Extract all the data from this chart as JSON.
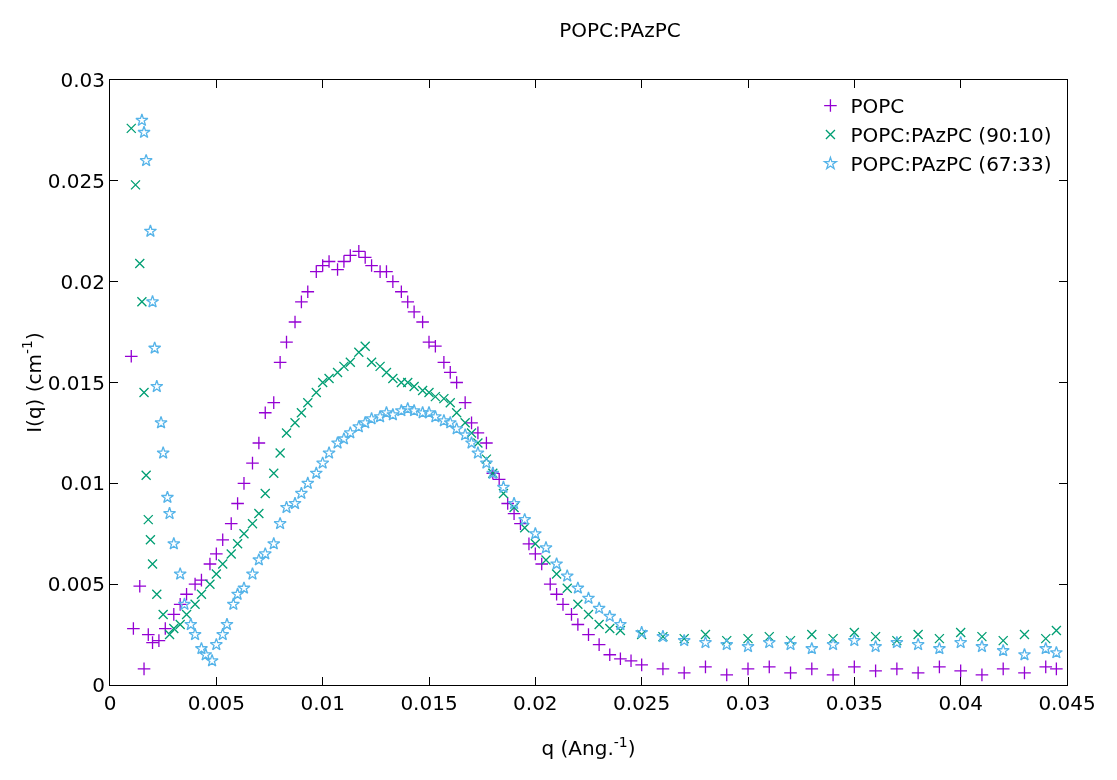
{
  "chart_data": {
    "type": "scatter",
    "title": "POPC:PAzPC",
    "xlabel": "q (Ang.$^{-1}$)",
    "ylabel": "I(q) (cm$^{-1}$)",
    "xlim": [
      0,
      0.045
    ],
    "xticks": [
      0,
      0.005,
      0.01,
      0.015,
      0.02,
      0.025,
      0.03,
      0.035,
      0.04,
      0.045
    ],
    "ylim": [
      0,
      0.03
    ],
    "yticks": [
      0,
      0.005,
      0.01,
      0.015,
      0.02,
      0.025,
      0.03
    ],
    "grid": false,
    "legend": "top right",
    "series": [
      {
        "name": "POPC",
        "color": "#9400d3",
        "marker": "cross",
        "x": [
          0.001,
          0.0011,
          0.0014,
          0.0016,
          0.0018,
          0.002,
          0.0023,
          0.0026,
          0.003,
          0.0033,
          0.0036,
          0.004,
          0.0043,
          0.0047,
          0.005,
          0.0053,
          0.0057,
          0.006,
          0.0063,
          0.0067,
          0.007,
          0.0073,
          0.0077,
          0.008,
          0.0083,
          0.0087,
          0.009,
          0.0093,
          0.0097,
          0.01,
          0.0103,
          0.0107,
          0.011,
          0.0113,
          0.0117,
          0.012,
          0.0123,
          0.0127,
          0.013,
          0.0133,
          0.0137,
          0.014,
          0.0143,
          0.0147,
          0.015,
          0.0153,
          0.0157,
          0.016,
          0.0163,
          0.0167,
          0.017,
          0.0173,
          0.0177,
          0.018,
          0.0183,
          0.0187,
          0.019,
          0.0193,
          0.0197,
          0.02,
          0.0203,
          0.0207,
          0.021,
          0.0213,
          0.0217,
          0.022,
          0.0225,
          0.023,
          0.0235,
          0.024,
          0.0245,
          0.025,
          0.026,
          0.027,
          0.028,
          0.029,
          0.03,
          0.031,
          0.032,
          0.033,
          0.034,
          0.035,
          0.036,
          0.037,
          0.038,
          0.039,
          0.04,
          0.041,
          0.042,
          0.043,
          0.044,
          0.0445
        ],
        "values": [
          0.0163,
          0.0028,
          0.0049,
          0.0008,
          0.0025,
          0.0021,
          0.0022,
          0.0028,
          0.0035,
          0.004,
          0.0045,
          0.005,
          0.0052,
          0.006,
          0.0065,
          0.0072,
          0.008,
          0.009,
          0.01,
          0.011,
          0.012,
          0.0135,
          0.014,
          0.016,
          0.017,
          0.018,
          0.019,
          0.0195,
          0.0205,
          0.0208,
          0.021,
          0.0206,
          0.021,
          0.0213,
          0.0215,
          0.0212,
          0.0208,
          0.0205,
          0.0205,
          0.02,
          0.0195,
          0.019,
          0.0185,
          0.018,
          0.017,
          0.0168,
          0.016,
          0.0155,
          0.015,
          0.014,
          0.013,
          0.0125,
          0.012,
          0.0105,
          0.0102,
          0.009,
          0.0085,
          0.008,
          0.007,
          0.0065,
          0.006,
          0.005,
          0.0045,
          0.004,
          0.0035,
          0.003,
          0.0025,
          0.002,
          0.0015,
          0.0013,
          0.0012,
          0.001,
          0.0008,
          0.0006,
          0.0009,
          0.0005,
          0.0008,
          0.0009,
          0.0006,
          0.0008,
          0.0005,
          0.0009,
          0.0007,
          0.0008,
          0.0006,
          0.0009,
          0.0007,
          0.0005,
          0.0008,
          0.0006,
          0.0009,
          0.0008
        ]
      },
      {
        "name": "POPC:PAzPC (90:10)",
        "color": "#009e73",
        "marker": "x",
        "x": [
          0.001,
          0.0012,
          0.0014,
          0.0015,
          0.0016,
          0.0017,
          0.0018,
          0.0019,
          0.002,
          0.0022,
          0.0025,
          0.0028,
          0.003,
          0.0033,
          0.0036,
          0.004,
          0.0043,
          0.0047,
          0.005,
          0.0053,
          0.0057,
          0.006,
          0.0063,
          0.0067,
          0.007,
          0.0073,
          0.0077,
          0.008,
          0.0083,
          0.0087,
          0.009,
          0.0093,
          0.0097,
          0.01,
          0.0103,
          0.0107,
          0.011,
          0.0113,
          0.0117,
          0.012,
          0.0123,
          0.0127,
          0.013,
          0.0133,
          0.0137,
          0.014,
          0.0143,
          0.0147,
          0.015,
          0.0153,
          0.0157,
          0.016,
          0.0163,
          0.0167,
          0.017,
          0.0173,
          0.0177,
          0.018,
          0.0185,
          0.019,
          0.0195,
          0.02,
          0.0205,
          0.021,
          0.0215,
          0.022,
          0.0225,
          0.023,
          0.0235,
          0.024,
          0.025,
          0.026,
          0.027,
          0.028,
          0.029,
          0.03,
          0.031,
          0.032,
          0.033,
          0.034,
          0.035,
          0.036,
          0.037,
          0.038,
          0.039,
          0.04,
          0.041,
          0.042,
          0.043,
          0.044,
          0.0445
        ],
        "values": [
          0.0276,
          0.0248,
          0.0209,
          0.019,
          0.0145,
          0.0104,
          0.0082,
          0.0072,
          0.006,
          0.0045,
          0.0035,
          0.0025,
          0.0028,
          0.003,
          0.0035,
          0.004,
          0.0045,
          0.005,
          0.0055,
          0.006,
          0.0065,
          0.007,
          0.0075,
          0.008,
          0.0085,
          0.0095,
          0.0105,
          0.0115,
          0.0125,
          0.013,
          0.0135,
          0.014,
          0.0145,
          0.015,
          0.0152,
          0.0155,
          0.0158,
          0.016,
          0.0165,
          0.0168,
          0.016,
          0.0158,
          0.0155,
          0.0152,
          0.015,
          0.015,
          0.0148,
          0.0146,
          0.0145,
          0.0143,
          0.0142,
          0.014,
          0.0135,
          0.013,
          0.0125,
          0.012,
          0.0112,
          0.0105,
          0.0095,
          0.0088,
          0.0078,
          0.007,
          0.0062,
          0.0055,
          0.0048,
          0.004,
          0.0035,
          0.003,
          0.0028,
          0.0027,
          0.0025,
          0.0024,
          0.0023,
          0.0025,
          0.0022,
          0.0023,
          0.0024,
          0.0022,
          0.0025,
          0.0023,
          0.0026,
          0.0024,
          0.0022,
          0.0025,
          0.0023,
          0.0026,
          0.0024,
          0.0022,
          0.0025,
          0.0023,
          0.0027
        ]
      },
      {
        "name": "POPC:PAzPC (67:33)",
        "color": "#56b4e9",
        "marker": "star",
        "x": [
          0.0015,
          0.0016,
          0.0017,
          0.0019,
          0.002,
          0.0021,
          0.0022,
          0.0024,
          0.0025,
          0.0027,
          0.0028,
          0.003,
          0.0033,
          0.0035,
          0.0038,
          0.004,
          0.0043,
          0.0045,
          0.0048,
          0.005,
          0.0053,
          0.0055,
          0.0058,
          0.006,
          0.0063,
          0.0067,
          0.007,
          0.0073,
          0.0077,
          0.008,
          0.0083,
          0.0087,
          0.009,
          0.0093,
          0.0097,
          0.01,
          0.0103,
          0.0107,
          0.011,
          0.0113,
          0.0117,
          0.012,
          0.0123,
          0.0127,
          0.013,
          0.0133,
          0.0137,
          0.014,
          0.0143,
          0.0147,
          0.015,
          0.0153,
          0.0157,
          0.016,
          0.0163,
          0.0167,
          0.017,
          0.0173,
          0.0177,
          0.018,
          0.0185,
          0.019,
          0.0195,
          0.02,
          0.0205,
          0.021,
          0.0215,
          0.022,
          0.0225,
          0.023,
          0.0235,
          0.024,
          0.025,
          0.026,
          0.027,
          0.028,
          0.029,
          0.03,
          0.031,
          0.032,
          0.033,
          0.034,
          0.035,
          0.036,
          0.037,
          0.038,
          0.039,
          0.04,
          0.041,
          0.042,
          0.043,
          0.044,
          0.0445
        ],
        "values": [
          0.028,
          0.0274,
          0.026,
          0.0225,
          0.019,
          0.0167,
          0.0148,
          0.013,
          0.0115,
          0.0093,
          0.0085,
          0.007,
          0.0055,
          0.004,
          0.003,
          0.0025,
          0.0018,
          0.0015,
          0.0012,
          0.002,
          0.0025,
          0.003,
          0.004,
          0.0045,
          0.0048,
          0.0055,
          0.0062,
          0.0065,
          0.007,
          0.008,
          0.0088,
          0.009,
          0.0095,
          0.01,
          0.0105,
          0.011,
          0.0115,
          0.012,
          0.0122,
          0.0125,
          0.0128,
          0.013,
          0.0132,
          0.0133,
          0.0135,
          0.0134,
          0.0136,
          0.0137,
          0.0136,
          0.0135,
          0.0135,
          0.0133,
          0.0131,
          0.013,
          0.0127,
          0.0124,
          0.012,
          0.0115,
          0.011,
          0.0105,
          0.0098,
          0.009,
          0.0082,
          0.0075,
          0.0068,
          0.006,
          0.0054,
          0.0048,
          0.0043,
          0.0038,
          0.0034,
          0.003,
          0.0026,
          0.0024,
          0.0022,
          0.0021,
          0.002,
          0.0019,
          0.0021,
          0.002,
          0.0018,
          0.002,
          0.0022,
          0.0019,
          0.0021,
          0.002,
          0.0018,
          0.0021,
          0.0019,
          0.0017,
          0.0015,
          0.0018,
          0.0016
        ]
      }
    ]
  }
}
